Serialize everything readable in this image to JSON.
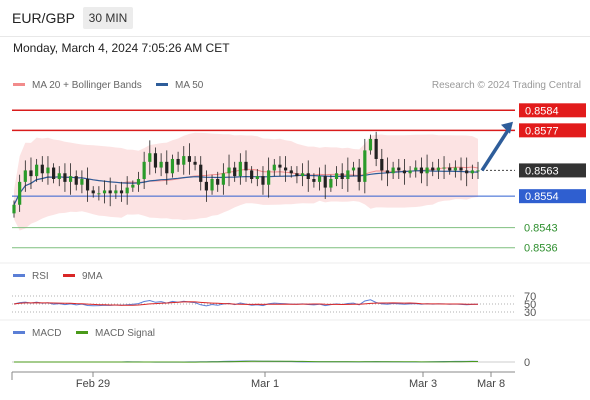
{
  "header": {
    "symbol": "EUR/GBP",
    "timeframe": "30 MIN"
  },
  "datetime": "Monday, March 4, 2024 7:05:26 AM CET",
  "credit": "Research © 2024 Trading Central",
  "legend_main": [
    {
      "label": "MA 20 + Bollinger Bands",
      "color": "#f28b8b"
    },
    {
      "label": "MA 50",
      "color": "#2e5d9a"
    }
  ],
  "legend_rsi": [
    {
      "label": "RSI",
      "color": "#5b7fd6"
    },
    {
      "label": "9MA",
      "color": "#d92626"
    }
  ],
  "legend_macd": [
    {
      "label": "MACD",
      "color": "#5b7fd6"
    },
    {
      "label": "MACD Signal",
      "color": "#4a9a1a"
    }
  ],
  "chart_data": {
    "type": "candlestick",
    "x_ticks": [
      "Feb 29",
      "Mar 1",
      "Mar 3",
      "Mar 8"
    ],
    "price_range": [
      0.8531,
      0.8589
    ],
    "current_price": "0.8563",
    "levels": [
      {
        "value": 0.8584,
        "label": "0.8584",
        "role": "resistance"
      },
      {
        "value": 0.8577,
        "label": "0.8577",
        "role": "resistance"
      },
      {
        "value": 0.8554,
        "label": "0.8554",
        "role": "pivot"
      },
      {
        "value": 0.8543,
        "label": "0.8543",
        "role": "support"
      },
      {
        "value": 0.8536,
        "label": "0.8536",
        "role": "support"
      }
    ],
    "forecast_arrow": {
      "from": 0.8563,
      "to": 0.858
    },
    "closes": [
      0.8551,
      0.8559,
      0.8563,
      0.8561,
      0.8565,
      0.8562,
      0.8564,
      0.856,
      0.8562,
      0.8559,
      0.8561,
      0.8558,
      0.856,
      0.8556,
      0.8555,
      0.8555,
      0.8556,
      0.8555,
      0.8556,
      0.8555,
      0.8557,
      0.8558,
      0.856,
      0.8566,
      0.8569,
      0.8564,
      0.8566,
      0.8562,
      0.8567,
      0.8565,
      0.8568,
      0.8566,
      0.8565,
      0.8559,
      0.8556,
      0.856,
      0.8558,
      0.8562,
      0.8564,
      0.8561,
      0.8566,
      0.8563,
      0.856,
      0.8561,
      0.8558,
      0.8563,
      0.8565,
      0.8564,
      0.8563,
      0.8562,
      0.8561,
      0.8562,
      0.856,
      0.8559,
      0.8561,
      0.8557,
      0.856,
      0.8562,
      0.856,
      0.8563,
      0.8564,
      0.8559,
      0.857,
      0.8574,
      0.8567,
      0.8563,
      0.8562,
      0.8564,
      0.8563,
      0.8562,
      0.8563,
      0.8564,
      0.8562,
      0.8564,
      0.8563,
      0.8564,
      0.8564,
      0.8563,
      0.8564,
      0.8563,
      0.8562,
      0.8563,
      0.8563
    ],
    "rsi_ticks": [
      "70",
      "50",
      "30"
    ],
    "macd_ticks": [
      "0"
    ]
  }
}
